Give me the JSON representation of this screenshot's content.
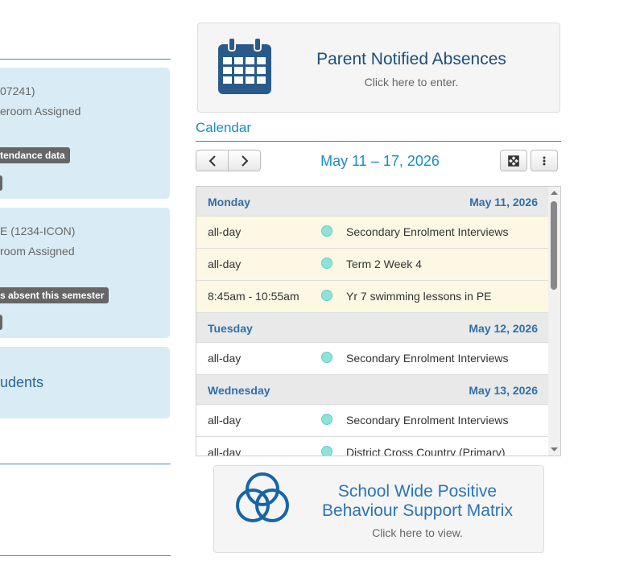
{
  "left_panel": {
    "cards": [
      {
        "lines": [
          "07241)",
          "eroom Assigned"
        ],
        "badge": "tendance data"
      },
      {
        "lines": [
          "E (1234-ICON)",
          "room Assigned"
        ],
        "badge": "s absent this semester"
      },
      {
        "title": "udents"
      }
    ]
  },
  "parent_absences": {
    "title": "Parent Notified Absences",
    "subtitle": "Click here to enter."
  },
  "calendar": {
    "heading": "Calendar",
    "range": "May 11 – 17, 2026",
    "days": [
      {
        "name": "Monday",
        "date": "May 11, 2026",
        "events": [
          {
            "time": "all-day",
            "title": "Secondary Enrolment Interviews"
          },
          {
            "time": "all-day",
            "title": "Term 2 Week 4"
          },
          {
            "time": "8:45am - 10:55am",
            "title": "Yr 7 swimming lessons in PE"
          }
        ]
      },
      {
        "name": "Tuesday",
        "date": "May 12, 2026",
        "events": [
          {
            "time": "all-day",
            "title": "Secondary Enrolment Interviews"
          }
        ]
      },
      {
        "name": "Wednesday",
        "date": "May 13, 2026",
        "events": [
          {
            "time": "all-day",
            "title": "Secondary Enrolment Interviews"
          },
          {
            "time": "all-day",
            "title": "District Cross Country (Primary)"
          }
        ]
      }
    ]
  },
  "pbs": {
    "title_lines": [
      "School Wide Positive",
      "Behaviour Support Matrix"
    ],
    "subtitle": "Click here to view."
  }
}
